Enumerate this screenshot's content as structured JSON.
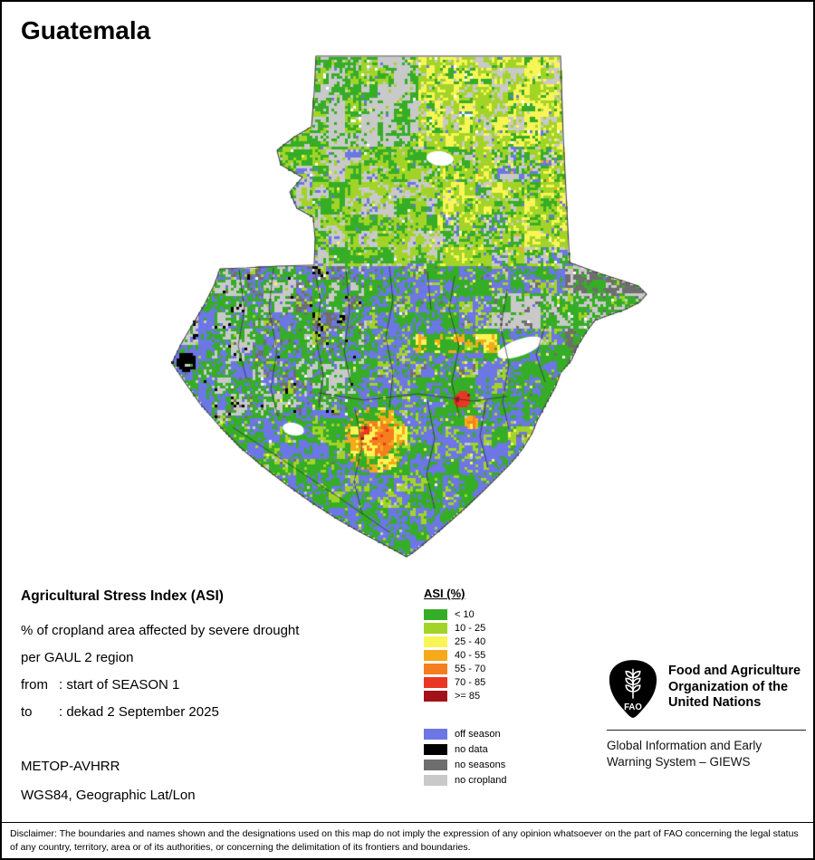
{
  "title": "Guatemala",
  "map": {
    "outline_color": "#3C3C3C"
  },
  "info": {
    "heading": "Agricultural Stress Index (ASI)",
    "subtitle1": "% of cropland area affected by severe drought",
    "subtitle2": "per GAUL 2 region",
    "from_label": "from",
    "from_value": ": start of SEASON 1",
    "to_label": "to",
    "to_value": ": dekad 2 September 2025",
    "sensor": "METOP-AVHRR",
    "projection": "WGS84, Geographic Lat/Lon"
  },
  "legend": {
    "title": "ASI (%)",
    "classes": [
      {
        "key": "lt10",
        "label": "< 10",
        "color": "#36AD27"
      },
      {
        "key": "c10_25",
        "label": "10 - 25",
        "color": "#A2D427"
      },
      {
        "key": "c25_40",
        "label": "25 - 40",
        "color": "#F9F556"
      },
      {
        "key": "c40_55",
        "label": "40 - 55",
        "color": "#F7A919"
      },
      {
        "key": "c55_70",
        "label": "55 - 70",
        "color": "#F57E1E"
      },
      {
        "key": "c70_85",
        "label": "70 - 85",
        "color": "#E83723"
      },
      {
        "key": "ge85",
        "label": ">= 85",
        "color": "#A41219"
      }
    ],
    "extras": [
      {
        "key": "off_season",
        "label": "off season",
        "color": "#6C76E4"
      },
      {
        "key": "no_data",
        "label": "no data",
        "color": "#000000"
      },
      {
        "key": "no_seasons",
        "label": "no seasons",
        "color": "#6E6E6E"
      },
      {
        "key": "no_cropland",
        "label": "no cropland",
        "color": "#C9C9C9"
      }
    ]
  },
  "fao": {
    "logo_text": "FAO",
    "org_name": "Food and Agriculture Organization of the United Nations",
    "giews": "Global Information and Early Warning System – GIEWS"
  },
  "disclaimer": "Disclaimer: The boundaries and names shown and the designations used on this map do not imply the expression of any opinion whatsoever on the part of FAO concerning the legal status of any country, territory, area or of its authorities, or concerning the delimitation of its frontiers and boundaries."
}
